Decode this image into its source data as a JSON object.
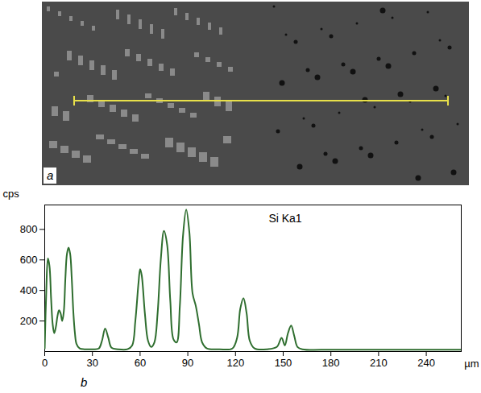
{
  "panel_labels": [
    "a",
    "b"
  ],
  "chart_data": {
    "type": "line",
    "y_label": "cps",
    "x_label": "µm",
    "legend": "top",
    "grid": false,
    "xlim": [
      0,
      262
    ],
    "xticks": [
      0,
      30,
      60,
      90,
      120,
      150,
      180,
      210,
      240
    ],
    "ylim": [
      0,
      960
    ],
    "yticks": [
      200,
      400,
      600,
      800
    ],
    "x": [
      0,
      1,
      2,
      3,
      4,
      5,
      6,
      7,
      8,
      9,
      10,
      11,
      12,
      13,
      14,
      15,
      16,
      17,
      18,
      19,
      20,
      22,
      25,
      30,
      34,
      36,
      38,
      40,
      42,
      46,
      52,
      55,
      57,
      59,
      60,
      61,
      63,
      65,
      67,
      69,
      71,
      73,
      75,
      77,
      79,
      81,
      83,
      85,
      87,
      89,
      91,
      93,
      95,
      97,
      99,
      102,
      110,
      118,
      121,
      123,
      125,
      127,
      129,
      132,
      140,
      146,
      149,
      151,
      153,
      155,
      157,
      159,
      162,
      180,
      200,
      220,
      240,
      262
    ],
    "series": [
      {
        "name": "Si Ka1",
        "color": "#2f6e2f",
        "values": [
          20,
          400,
          610,
          560,
          350,
          180,
          120,
          160,
          230,
          270,
          250,
          200,
          260,
          480,
          640,
          680,
          640,
          480,
          260,
          120,
          50,
          20,
          15,
          15,
          20,
          70,
          150,
          90,
          25,
          15,
          15,
          40,
          200,
          450,
          540,
          500,
          250,
          70,
          30,
          60,
          250,
          600,
          790,
          700,
          330,
          80,
          60,
          300,
          760,
          930,
          780,
          380,
          300,
          180,
          60,
          20,
          15,
          20,
          90,
          280,
          350,
          250,
          70,
          20,
          15,
          30,
          90,
          40,
          120,
          170,
          100,
          30,
          15,
          12,
          12,
          12,
          12,
          12
        ]
      }
    ]
  }
}
